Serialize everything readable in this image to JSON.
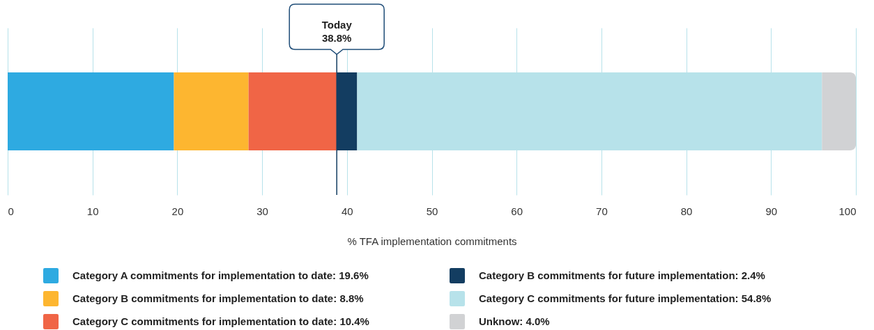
{
  "chart_data": {
    "type": "bar",
    "orientation": "horizontal",
    "stacked": true,
    "categories": [
      null
    ],
    "series": [
      {
        "name": "Category A commitments for implementation to date: 19.6%",
        "color": "#2eaae1",
        "values": [
          19.6
        ]
      },
      {
        "name": "Category B commitments for implementation to date: 8.8%",
        "color": "#fdb630",
        "values": [
          8.8
        ]
      },
      {
        "name": "Category C commitments for implementation to date: 10.4%",
        "color": "#f06546",
        "values": [
          10.4
        ]
      },
      {
        "name": "Category B commitments for future implementation: 2.4%",
        "color": "#133d61",
        "values": [
          2.4
        ]
      },
      {
        "name": "Category C commitments for future implementation: 54.8%",
        "color": "#b7e2ea",
        "values": [
          54.8
        ]
      },
      {
        "name": "Unknow: 4.0%",
        "color": "#d1d2d4",
        "values": [
          4.0
        ]
      }
    ],
    "xlabel": "% TFA implementation commitments",
    "xlim": [
      0,
      100
    ],
    "xticks": [
      0,
      10,
      20,
      30,
      40,
      50,
      60,
      70,
      80,
      90,
      100
    ],
    "grid": "x",
    "legend": "bottom",
    "tick_labels": "x",
    "ref_lines": [
      {
        "axis": "x",
        "value": 38.8,
        "label": "Today\n38.8%",
        "color": "#133d61"
      }
    ]
  }
}
